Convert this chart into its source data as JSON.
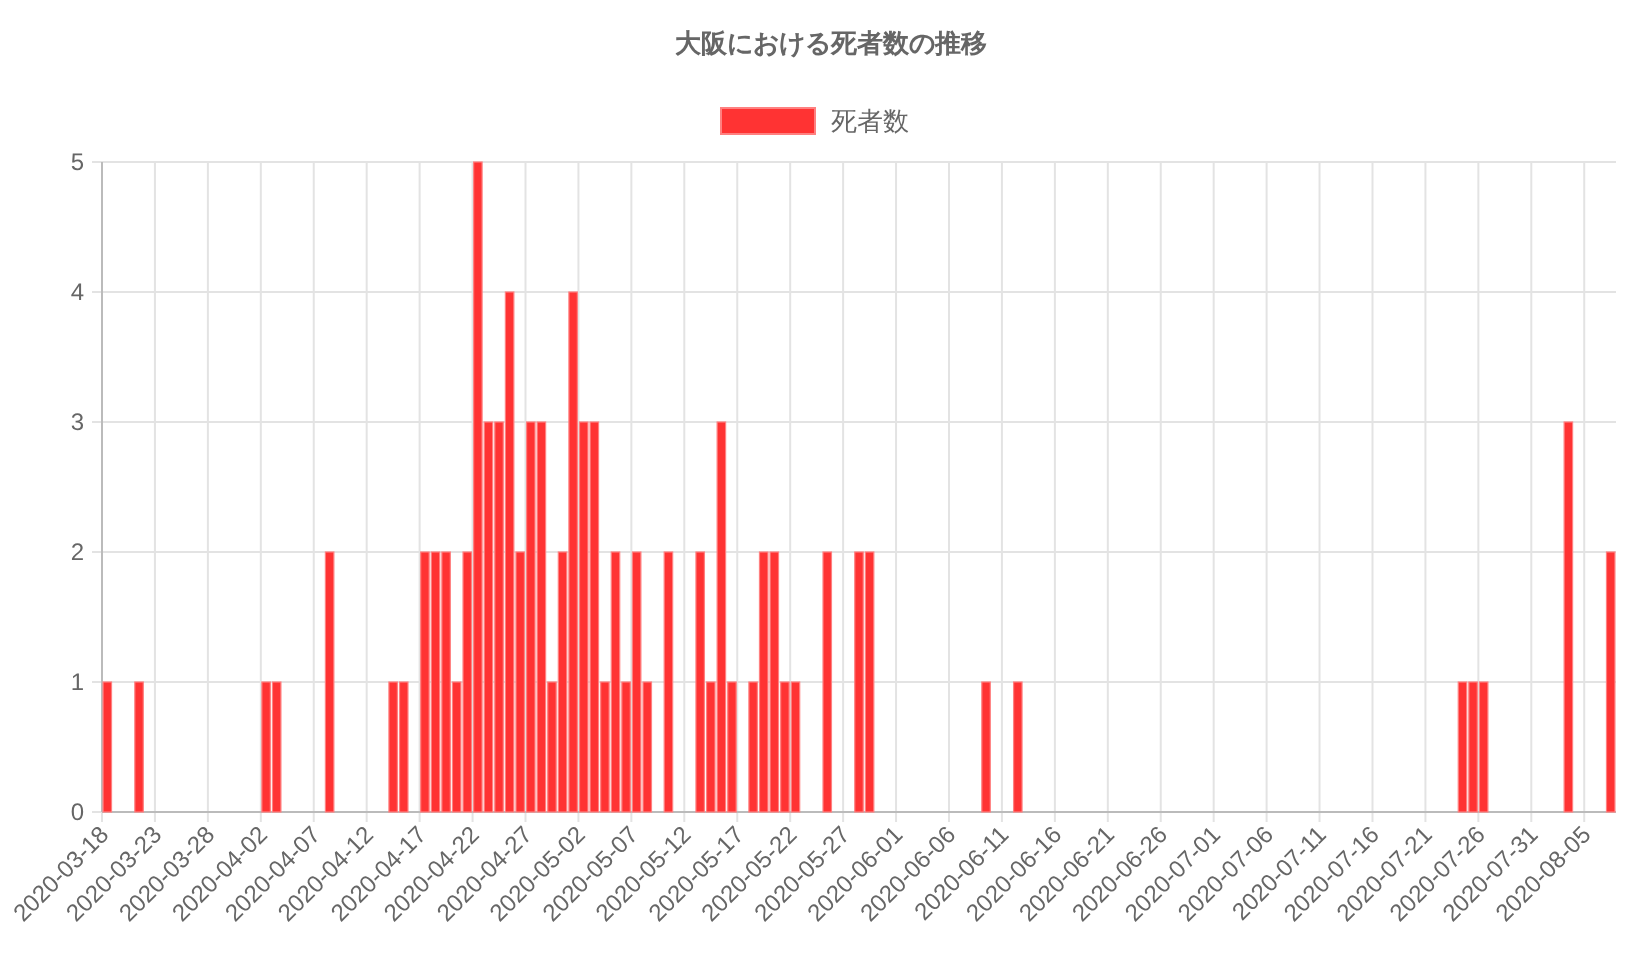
{
  "chart_data": {
    "type": "bar",
    "title": "大阪における死者数の推移",
    "categories": [
      "2020-03-18",
      null,
      null,
      null,
      null,
      "2020-03-23",
      null,
      null,
      null,
      null,
      "2020-03-28",
      null,
      null,
      null,
      null,
      "2020-04-02",
      null,
      null,
      null,
      null,
      "2020-04-07",
      null,
      null,
      null,
      null,
      "2020-04-12",
      null,
      null,
      null,
      null,
      "2020-04-17",
      null,
      null,
      null,
      null,
      "2020-04-22",
      null,
      null,
      null,
      null,
      "2020-04-27",
      null,
      null,
      null,
      null,
      "2020-05-02",
      null,
      null,
      null,
      null,
      "2020-05-07",
      null,
      null,
      null,
      null,
      "2020-05-12",
      null,
      null,
      null,
      null,
      "2020-05-17",
      null,
      null,
      null,
      null,
      "2020-05-22",
      null,
      null,
      null,
      null,
      "2020-05-27",
      null,
      null,
      null,
      null,
      "2020-06-01",
      null,
      null,
      null,
      null,
      "2020-06-06",
      null,
      null,
      null,
      null,
      "2020-06-11",
      null,
      null,
      null,
      null,
      "2020-06-16",
      null,
      null,
      null,
      null,
      "2020-06-21",
      null,
      null,
      null,
      null,
      "2020-06-26",
      null,
      null,
      null,
      null,
      "2020-07-01",
      null,
      null,
      null,
      null,
      "2020-07-06",
      null,
      null,
      null,
      null,
      "2020-07-11",
      null,
      null,
      null,
      null,
      "2020-07-16",
      null,
      null,
      null,
      null,
      "2020-07-21",
      null,
      null,
      null,
      null,
      "2020-07-26",
      null,
      null,
      null,
      null,
      "2020-07-31",
      null,
      null,
      null,
      null,
      "2020-08-05",
      null,
      null
    ],
    "series": [
      {
        "name": "死者数",
        "color": "#ff3333",
        "values": [
          1,
          0,
          0,
          1,
          0,
          0,
          0,
          0,
          0,
          0,
          0,
          0,
          0,
          0,
          0,
          1,
          1,
          0,
          0,
          0,
          0,
          2,
          0,
          0,
          0,
          0,
          0,
          1,
          1,
          0,
          2,
          2,
          2,
          1,
          2,
          5,
          3,
          3,
          4,
          2,
          3,
          3,
          1,
          2,
          4,
          3,
          3,
          1,
          2,
          1,
          2,
          1,
          0,
          2,
          0,
          0,
          2,
          1,
          3,
          1,
          0,
          1,
          2,
          2,
          1,
          1,
          0,
          0,
          2,
          0,
          0,
          2,
          2,
          0,
          0,
          0,
          0,
          0,
          0,
          0,
          0,
          0,
          0,
          1,
          0,
          0,
          1,
          0,
          0,
          0,
          0,
          0,
          0,
          0,
          0,
          0,
          0,
          0,
          0,
          0,
          0,
          0,
          0,
          0,
          0,
          0,
          0,
          0,
          0,
          0,
          0,
          0,
          0,
          0,
          0,
          0,
          0,
          0,
          0,
          0,
          0,
          0,
          0,
          0,
          0,
          0,
          0,
          0,
          1,
          1,
          1,
          0,
          0,
          0,
          0,
          0,
          0,
          0,
          3,
          0,
          0,
          0,
          2
        ]
      }
    ],
    "ylim": [
      0,
      5
    ],
    "yticks": [
      0,
      1,
      2,
      3,
      4,
      5
    ],
    "grid": true,
    "legend": "top"
  }
}
